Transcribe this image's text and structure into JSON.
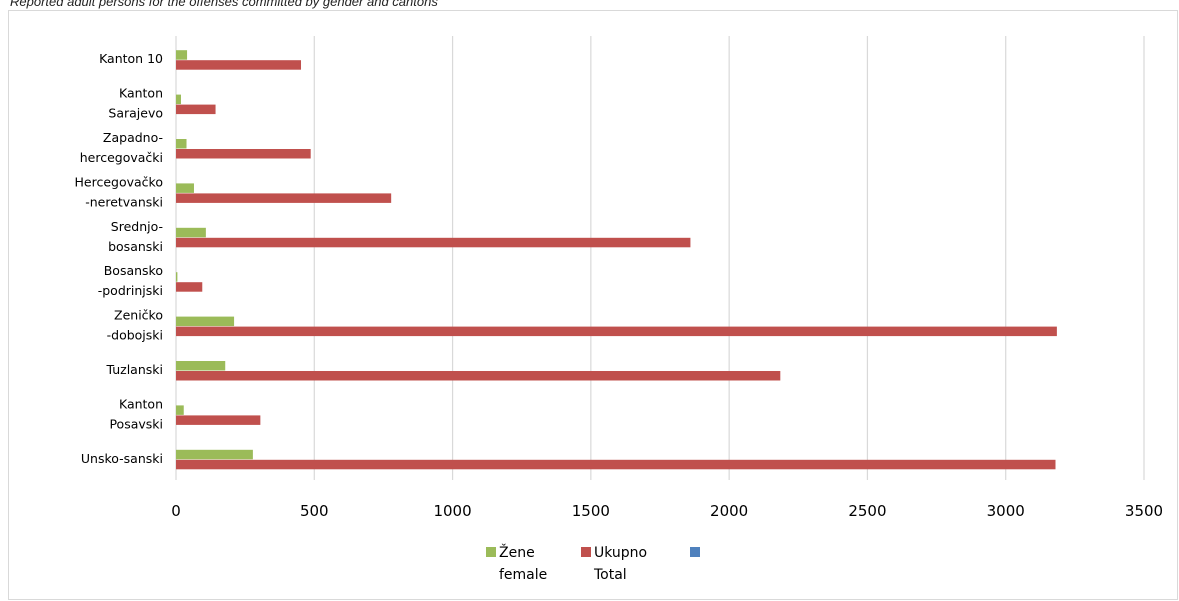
{
  "caption": "Reported adult persons for the offenses committed by gender and cantons",
  "chart_data": {
    "type": "bar",
    "orientation": "horizontal",
    "categories": [
      [
        "Kanton 10"
      ],
      [
        "Kanton",
        "Sarajevo"
      ],
      [
        "Zapadno-",
        "hercegovački"
      ],
      [
        "Hercegovačko",
        "-neretvanski"
      ],
      [
        "Srednjo-",
        "bosanski"
      ],
      [
        "Bosansko",
        "-podrinjski"
      ],
      [
        "Zeničko",
        "-dobojski"
      ],
      [
        "Tuzlanski"
      ],
      [
        "Kanton",
        "Posavski"
      ],
      [
        "Unsko-sanski"
      ]
    ],
    "series": [
      {
        "name": [
          "Žene",
          "female"
        ],
        "color": "#9bbb59",
        "values": [
          40,
          18,
          38,
          65,
          108,
          5,
          210,
          178,
          28,
          278
        ]
      },
      {
        "name": [
          "Ukupno",
          "Total"
        ],
        "color": "#c0504d",
        "values": [
          452,
          143,
          487,
          778,
          1860,
          95,
          3185,
          2185,
          305,
          3180
        ]
      },
      {
        "name": [
          "",
          ""
        ],
        "color": "#4f81bd",
        "values": [
          0,
          0,
          0,
          0,
          0,
          0,
          0,
          0,
          0,
          0
        ]
      }
    ],
    "xlim": [
      0,
      3500
    ],
    "xticks": [
      "0",
      "500",
      "1000",
      "1500",
      "2000",
      "2500",
      "3000",
      "3500"
    ],
    "grid": true,
    "legend": "bottom"
  }
}
